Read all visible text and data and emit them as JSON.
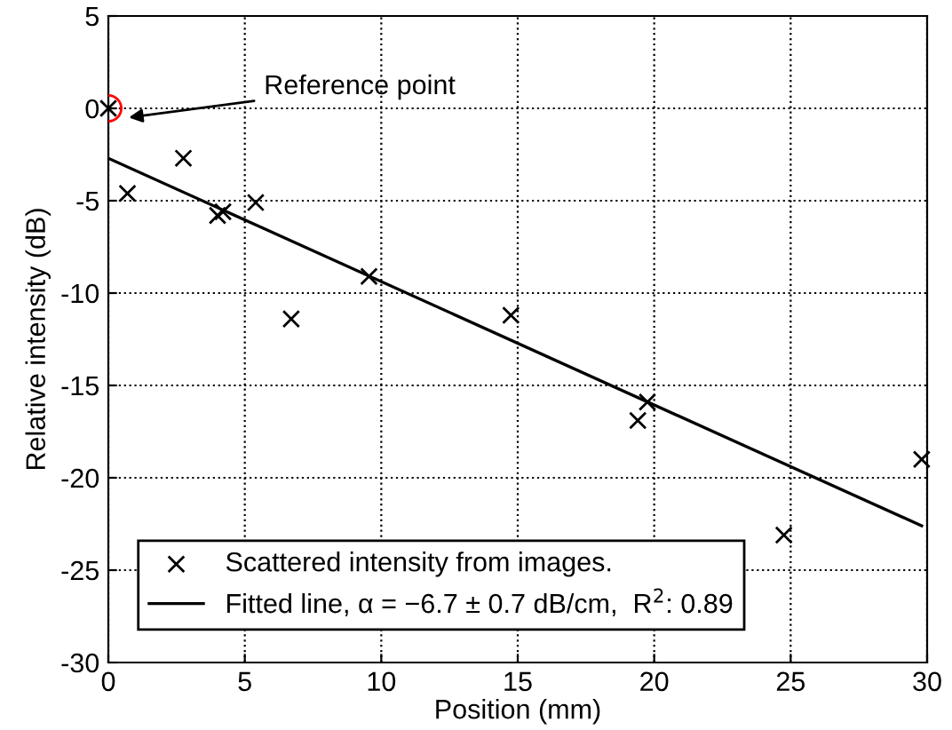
{
  "chart_data": {
    "type": "scatter",
    "xlabel": "Position (mm)",
    "ylabel": "Relative intensity (dB)",
    "xlim": [
      0,
      30
    ],
    "ylim": [
      -30,
      5
    ],
    "xticks": [
      0,
      5,
      10,
      15,
      20,
      25,
      30
    ],
    "yticks": [
      -30,
      -25,
      -20,
      -15,
      -10,
      -5,
      0,
      5
    ],
    "grid": true,
    "legend": "bottom left",
    "series": [
      {
        "name": "Scattered intensity from images.",
        "marker": "cross",
        "color": "#000000",
        "x": [
          0,
          0.7,
          2.75,
          4.0,
          4.2,
          5.4,
          6.7,
          9.55,
          14.75,
          19.4,
          19.75,
          24.75,
          29.8
        ],
        "values": [
          0,
          -4.6,
          -2.7,
          -5.8,
          -5.6,
          -5.1,
          -11.4,
          -9.1,
          -11.2,
          -16.9,
          -15.9,
          -23.1,
          -19.0
        ]
      },
      {
        "name": "Fitted line, α = −6.7 ± 0.7 dB/cm,  R$^{2}$: 0.89",
        "type": "line",
        "marker": "none",
        "line_style": "solid",
        "color": "#000000",
        "x": [
          0,
          29.8
        ],
        "values": [
          -2.7,
          -22.6
        ]
      },
      {
        "marker": "circle",
        "color": "#ff0000",
        "x": [
          0
        ],
        "values": [
          0
        ]
      }
    ],
    "annotations": [
      "Reference point"
    ]
  }
}
